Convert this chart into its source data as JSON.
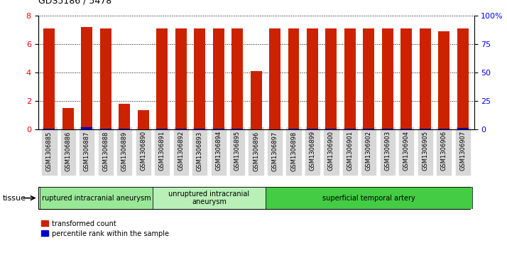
{
  "title": "GDS5186 / 5478",
  "samples": [
    "GSM1306885",
    "GSM1306886",
    "GSM1306887",
    "GSM1306888",
    "GSM1306889",
    "GSM1306890",
    "GSM1306891",
    "GSM1306892",
    "GSM1306893",
    "GSM1306894",
    "GSM1306895",
    "GSM1306896",
    "GSM1306897",
    "GSM1306898",
    "GSM1306899",
    "GSM1306900",
    "GSM1306901",
    "GSM1306902",
    "GSM1306903",
    "GSM1306904",
    "GSM1306905",
    "GSM1306906",
    "GSM1306907"
  ],
  "red_values": [
    7.1,
    1.5,
    7.2,
    7.1,
    1.8,
    1.35,
    7.1,
    7.1,
    7.1,
    7.1,
    7.1,
    4.1,
    7.1,
    7.1,
    7.1,
    7.1,
    7.1,
    7.1,
    7.1,
    7.1,
    7.1,
    6.9,
    7.1
  ],
  "blue_values": [
    0.05,
    0.0,
    0.12,
    0.05,
    0.05,
    0.0,
    0.05,
    0.05,
    0.05,
    0.05,
    0.05,
    0.0,
    0.0,
    0.05,
    0.05,
    0.05,
    0.05,
    0.05,
    0.05,
    0.05,
    0.05,
    0.05,
    0.08
  ],
  "groups": [
    {
      "label": "ruptured intracranial aneurysm",
      "start": 0,
      "end": 5,
      "color": "#98e898"
    },
    {
      "label": "unruptured intracranial\naneurysm",
      "start": 6,
      "end": 11,
      "color": "#b8f0b8"
    },
    {
      "label": "superficial temporal artery",
      "start": 12,
      "end": 22,
      "color": "#44cc44"
    }
  ],
  "ylim_left": [
    0,
    8
  ],
  "ylim_right": [
    0,
    100
  ],
  "yticks_left": [
    0,
    2,
    4,
    6,
    8
  ],
  "yticks_right": [
    0,
    25,
    50,
    75,
    100
  ],
  "ytick_labels_right": [
    "0",
    "25",
    "50",
    "75",
    "100%"
  ],
  "bar_color": "#cc2200",
  "blue_color": "#0000cc",
  "bg_color": "#d8d8d8",
  "plot_bg": "#ffffff",
  "legend_red": "transformed count",
  "legend_blue": "percentile rank within the sample",
  "tissue_label": "tissue",
  "bar_width": 0.6
}
